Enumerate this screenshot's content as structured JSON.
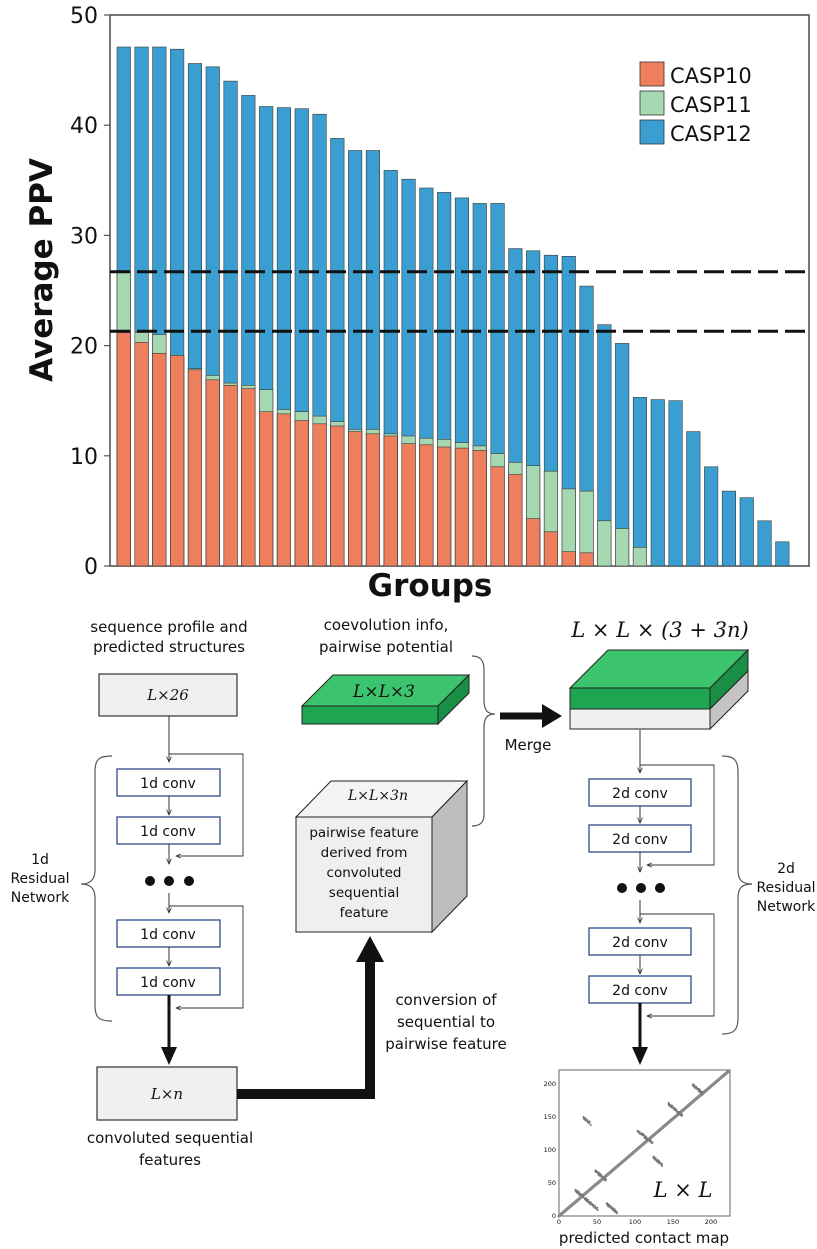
{
  "chart_data": {
    "type": "bar",
    "ylabel": "Average PPV",
    "xlabel": "Groups",
    "ylim": [
      0,
      50
    ],
    "yticks": [
      "0",
      "10",
      "20",
      "30",
      "40",
      "50"
    ],
    "legend_position": "top-right",
    "dashed_reference_lines": [
      26.7,
      21.3
    ],
    "series": [
      {
        "name": "CASP12",
        "color": "#3a9fd0",
        "values": [
          47.1,
          47.1,
          47.1,
          46.9,
          45.6,
          45.3,
          44.0,
          42.7,
          41.7,
          41.6,
          41.5,
          41.0,
          38.8,
          37.7,
          37.7,
          35.9,
          35.1,
          34.3,
          33.9,
          33.4,
          32.9,
          32.9,
          28.8,
          28.6,
          28.2,
          28.1,
          25.4,
          21.9,
          20.2,
          15.3,
          15.1,
          15.0,
          12.2,
          9.0,
          6.8,
          6.2,
          4.1,
          2.2
        ]
      },
      {
        "name": "CASP11",
        "color": "#a5d8b0",
        "values": [
          26.8,
          21.2,
          21.0,
          19.0,
          17.9,
          17.3,
          16.6,
          16.4,
          16.0,
          14.2,
          14.0,
          13.6,
          13.1,
          12.4,
          12.4,
          12.0,
          11.8,
          11.6,
          11.5,
          11.2,
          10.9,
          10.2,
          9.4,
          9.1,
          8.6,
          7.0,
          6.8,
          4.1,
          3.4,
          1.7
        ]
      },
      {
        "name": "CASP10",
        "color": "#ee7f5d",
        "values": [
          21.2,
          20.3,
          19.3,
          19.1,
          17.8,
          16.9,
          16.4,
          16.1,
          14.0,
          13.8,
          13.2,
          12.9,
          12.7,
          12.2,
          12.0,
          11.8,
          11.1,
          11.0,
          10.8,
          10.7,
          10.5,
          9.0,
          8.3,
          4.3,
          3.1,
          1.3,
          1.2
        ]
      }
    ]
  },
  "diagram": {
    "seq_profile_label_l1": "sequence profile and",
    "seq_profile_label_l2": "predicted structures",
    "input_box": "L×26",
    "conv1d_label": "1d conv",
    "res1d_l1": "1d",
    "res1d_l2": "Residual",
    "res1d_l3": "Network",
    "ln_box": "L×n",
    "conv_seq_l1": "convoluted sequential",
    "conv_seq_l2": "features",
    "coevo_l1": "coevolution info,",
    "coevo_l2": "pairwise potential",
    "llx3_slab": "L×L×3",
    "cube_top": "L×L×3n",
    "cube_l1": "pairwise feature",
    "cube_l2": "derived from",
    "cube_l3": "convoluted",
    "cube_l4": "sequential",
    "cube_l5": "feature",
    "conversion_l1": "conversion of",
    "conversion_l2": "sequential to",
    "conversion_l3": "pairwise feature",
    "merge_label": "Merge",
    "merged_label": "L × L × (3 + 3n)",
    "conv2d_label": "2d conv",
    "res2d_l1": "2d",
    "res2d_l2": "Residual",
    "res2d_l3": "Network",
    "contact_map_inner": "L × L",
    "contact_map_yticks": [
      "0",
      "50",
      "100",
      "150",
      "200"
    ],
    "contact_map_xticks": [
      "0",
      "50",
      "100",
      "150",
      "200"
    ],
    "contact_map_caption": "predicted contact map"
  }
}
